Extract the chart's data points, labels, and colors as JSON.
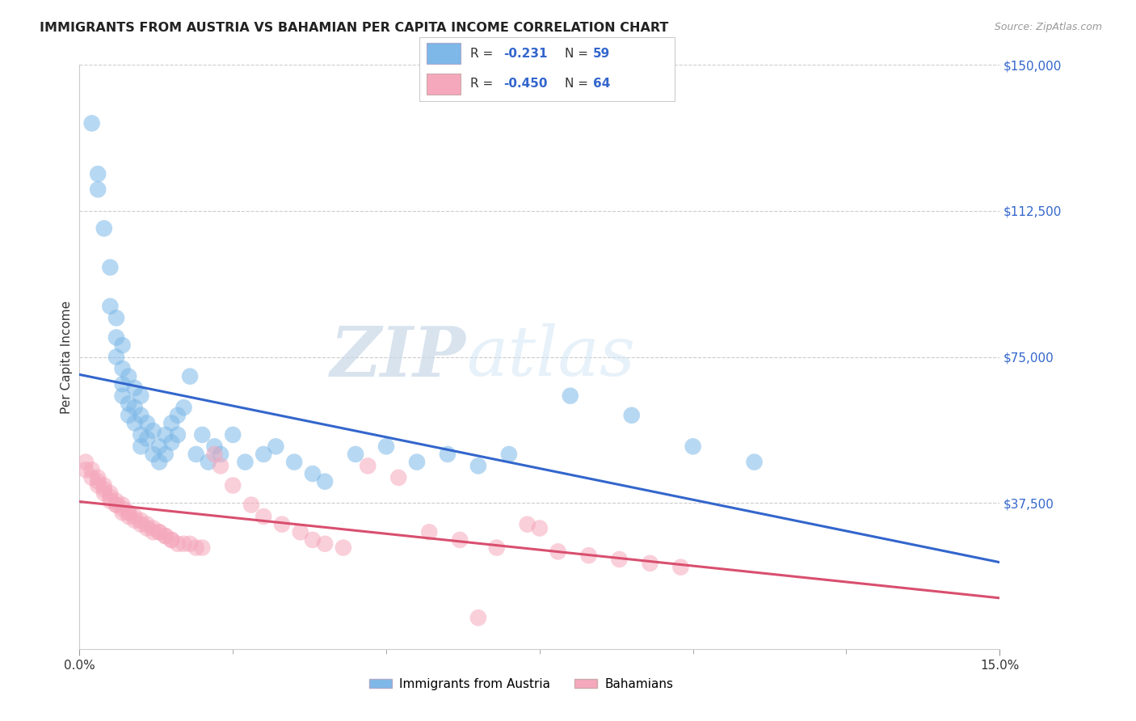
{
  "title": "IMMIGRANTS FROM AUSTRIA VS BAHAMIAN PER CAPITA INCOME CORRELATION CHART",
  "source": "Source: ZipAtlas.com",
  "ylabel": "Per Capita Income",
  "xlim": [
    0,
    0.15
  ],
  "ylim": [
    0,
    150000
  ],
  "yticks": [
    0,
    37500,
    75000,
    112500,
    150000
  ],
  "ytick_labels": [
    "",
    "$37,500",
    "$75,000",
    "$112,500",
    "$150,000"
  ],
  "xtick_labels": [
    "0.0%",
    "15.0%"
  ],
  "legend_bottom1": "Immigrants from Austria",
  "legend_bottom2": "Bahamians",
  "blue_color": "#7DB8E8",
  "pink_color": "#F5A8BC",
  "blue_line_color": "#3366CC",
  "pink_line_color": "#D94F6E",
  "watermark_zip": "ZIP",
  "watermark_atlas": "atlas",
  "blue_scatter_x": [
    0.002,
    0.003,
    0.003,
    0.004,
    0.005,
    0.005,
    0.006,
    0.006,
    0.006,
    0.007,
    0.007,
    0.007,
    0.007,
    0.008,
    0.008,
    0.008,
    0.009,
    0.009,
    0.009,
    0.01,
    0.01,
    0.01,
    0.01,
    0.011,
    0.011,
    0.012,
    0.012,
    0.013,
    0.013,
    0.014,
    0.014,
    0.015,
    0.015,
    0.016,
    0.016,
    0.017,
    0.018,
    0.019,
    0.02,
    0.021,
    0.022,
    0.023,
    0.025,
    0.027,
    0.03,
    0.032,
    0.035,
    0.038,
    0.04,
    0.045,
    0.05,
    0.055,
    0.06,
    0.065,
    0.07,
    0.08,
    0.09,
    0.1,
    0.11
  ],
  "blue_scatter_y": [
    135000,
    122000,
    118000,
    108000,
    98000,
    88000,
    85000,
    80000,
    75000,
    78000,
    72000,
    68000,
    65000,
    70000,
    63000,
    60000,
    67000,
    62000,
    58000,
    65000,
    60000,
    55000,
    52000,
    58000,
    54000,
    56000,
    50000,
    52000,
    48000,
    55000,
    50000,
    58000,
    53000,
    60000,
    55000,
    62000,
    70000,
    50000,
    55000,
    48000,
    52000,
    50000,
    55000,
    48000,
    50000,
    52000,
    48000,
    45000,
    43000,
    50000,
    52000,
    48000,
    50000,
    47000,
    50000,
    65000,
    60000,
    52000,
    48000
  ],
  "pink_scatter_x": [
    0.001,
    0.001,
    0.002,
    0.002,
    0.003,
    0.003,
    0.003,
    0.004,
    0.004,
    0.004,
    0.005,
    0.005,
    0.005,
    0.006,
    0.006,
    0.006,
    0.007,
    0.007,
    0.007,
    0.008,
    0.008,
    0.008,
    0.009,
    0.009,
    0.01,
    0.01,
    0.011,
    0.011,
    0.012,
    0.012,
    0.013,
    0.013,
    0.014,
    0.014,
    0.015,
    0.015,
    0.016,
    0.017,
    0.018,
    0.019,
    0.02,
    0.022,
    0.023,
    0.025,
    0.028,
    0.03,
    0.033,
    0.036,
    0.038,
    0.04,
    0.043,
    0.047,
    0.052,
    0.057,
    0.062,
    0.068,
    0.073,
    0.078,
    0.083,
    0.088,
    0.093,
    0.098,
    0.075,
    0.065
  ],
  "pink_scatter_y": [
    48000,
    46000,
    46000,
    44000,
    44000,
    43000,
    42000,
    42000,
    41000,
    40000,
    40000,
    39000,
    38000,
    38000,
    37000,
    37000,
    37000,
    36000,
    35000,
    35000,
    35000,
    34000,
    34000,
    33000,
    33000,
    32000,
    32000,
    31000,
    31000,
    30000,
    30000,
    30000,
    29000,
    29000,
    28000,
    28000,
    27000,
    27000,
    27000,
    26000,
    26000,
    50000,
    47000,
    42000,
    37000,
    34000,
    32000,
    30000,
    28000,
    27000,
    26000,
    47000,
    44000,
    30000,
    28000,
    26000,
    32000,
    25000,
    24000,
    23000,
    22000,
    21000,
    31000,
    8000
  ]
}
